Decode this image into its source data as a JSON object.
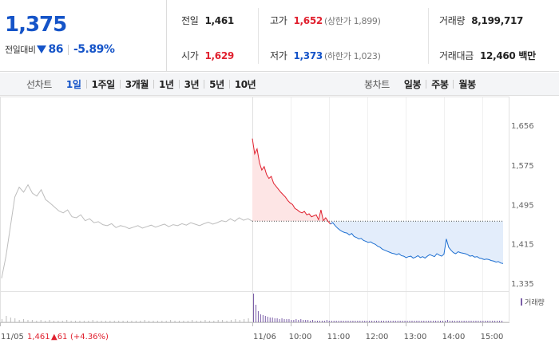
{
  "price": {
    "current": "1,375",
    "change_label": "전일대비",
    "change_value": "86",
    "change_pct": "-5.89%"
  },
  "stats": {
    "prev_close": {
      "label": "전일",
      "value": "1,461"
    },
    "open": {
      "label": "시가",
      "value": "1,629"
    },
    "high": {
      "label": "고가",
      "value": "1,652",
      "limit": "(상한가 1,899)"
    },
    "low": {
      "label": "저가",
      "value": "1,373",
      "limit": "(하한가 1,023)"
    },
    "volume": {
      "label": "거래량",
      "value": "8,199,717"
    },
    "amount": {
      "label": "거래대금",
      "value": "12,460 백만"
    }
  },
  "toolbar": {
    "line_title": "선차트",
    "line_items": [
      "1일",
      "1주일",
      "3개월",
      "1년",
      "3년",
      "5년",
      "10년"
    ],
    "candle_title": "봉차트",
    "candle_items": [
      "일봉",
      "주봉",
      "월봉"
    ]
  },
  "chart_data": {
    "type": "line",
    "y_ticks": [
      "1,656",
      "1,575",
      "1,495",
      "1,415",
      "1,335"
    ],
    "y_tick_values": [
      1656,
      1575,
      1495,
      1415,
      1335
    ],
    "ylim": [
      1335,
      1656
    ],
    "reference_line": 1461,
    "volume_legend": "거래량",
    "x_labels": [
      "11/05",
      "11/06",
      "10:00",
      "11:00",
      "12:00",
      "13:00",
      "14:00",
      "15:00"
    ],
    "prev_day_note": {
      "date": "11/05",
      "close": "1,461",
      "change": "▲61",
      "pct": "(+4.36%)"
    },
    "colors": {
      "up": "#e0212f",
      "down": "#1d6fd1",
      "up_fill": "#fde5e5",
      "down_fill": "#e3edfb",
      "prev_line": "#bdbdbd",
      "volume": "#7b5ea8"
    },
    "series": [
      {
        "values": [
          1345,
          1390,
          1450,
          1510,
          1530,
          1520,
          1535,
          1518,
          1512,
          1525,
          1505,
          1498,
          1490,
          1482,
          1478,
          1484,
          1470,
          1468,
          1474,
          1462,
          1466,
          1458,
          1460,
          1454,
          1452,
          1456,
          1448,
          1452,
          1450,
          1446,
          1449,
          1452,
          1447,
          1450,
          1453,
          1449,
          1452,
          1455,
          1450,
          1454,
          1452,
          1456,
          1453,
          1458,
          1455,
          1452,
          1456,
          1459,
          1455,
          1458,
          1462,
          1460,
          1466,
          1461,
          1468,
          1463,
          1466,
          1461
        ]
      },
      {
        "values": [
          1629,
          1598,
          1608,
          1580,
          1565,
          1572,
          1556,
          1548,
          1552,
          1538,
          1532,
          1526,
          1520,
          1515,
          1510,
          1503,
          1498,
          1495,
          1487,
          1484,
          1480,
          1478,
          1481,
          1474,
          1476,
          1470,
          1472,
          1474,
          1464,
          1484,
          1462,
          1468,
          1461,
          1455,
          1458,
          1452,
          1447,
          1443,
          1440,
          1438,
          1437,
          1433,
          1436,
          1430,
          1428,
          1425,
          1426,
          1422,
          1420,
          1418,
          1419,
          1416,
          1414,
          1410,
          1408,
          1404,
          1402,
          1400,
          1398,
          1396,
          1395,
          1393,
          1395,
          1391,
          1390,
          1387,
          1389,
          1390,
          1386,
          1388,
          1391,
          1387,
          1389,
          1386,
          1390,
          1393,
          1391,
          1389,
          1395,
          1392,
          1390,
          1394,
          1425,
          1408,
          1402,
          1397,
          1395,
          1399,
          1397,
          1396,
          1395,
          1393,
          1390,
          1391,
          1388,
          1389,
          1386,
          1385,
          1383,
          1384,
          1383,
          1381,
          1380,
          1378,
          1379,
          1376,
          1375
        ]
      }
    ],
    "volume": {
      "prev_day": [
        4,
        8,
        6,
        5,
        3,
        4,
        3,
        3,
        2,
        3,
        2,
        3,
        2,
        2,
        2,
        3,
        2,
        2,
        2,
        2,
        2,
        3,
        2,
        2,
        2,
        2,
        2,
        2,
        2,
        2,
        2,
        2,
        2,
        3,
        2,
        2,
        2,
        2,
        2,
        3,
        2,
        2,
        2,
        2,
        3,
        2,
        2,
        3,
        2,
        2,
        3,
        3,
        2,
        3,
        4,
        3,
        4,
        5
      ],
      "today": [
        36,
        22,
        14,
        10,
        9,
        8,
        7,
        6,
        6,
        5,
        5,
        4,
        5,
        4,
        4,
        4,
        3,
        3,
        4,
        3,
        4,
        3,
        3,
        3,
        2,
        3,
        2,
        2,
        2,
        2,
        2,
        3,
        2,
        2,
        2,
        2,
        2,
        2,
        2,
        2,
        2,
        2,
        2,
        2,
        2,
        2,
        2,
        2,
        2,
        2,
        2,
        2,
        2,
        2,
        2,
        2,
        2,
        2,
        2,
        2,
        2,
        2,
        2,
        2,
        2,
        2,
        2,
        2,
        2,
        2,
        2,
        2,
        2,
        2,
        2,
        2,
        2,
        2,
        2,
        2,
        2,
        2,
        3,
        2,
        2,
        2,
        2,
        2,
        2,
        2,
        2,
        2,
        2,
        2,
        2,
        2,
        2,
        2,
        2,
        2,
        2,
        2,
        2,
        2,
        2,
        2
      ]
    }
  }
}
